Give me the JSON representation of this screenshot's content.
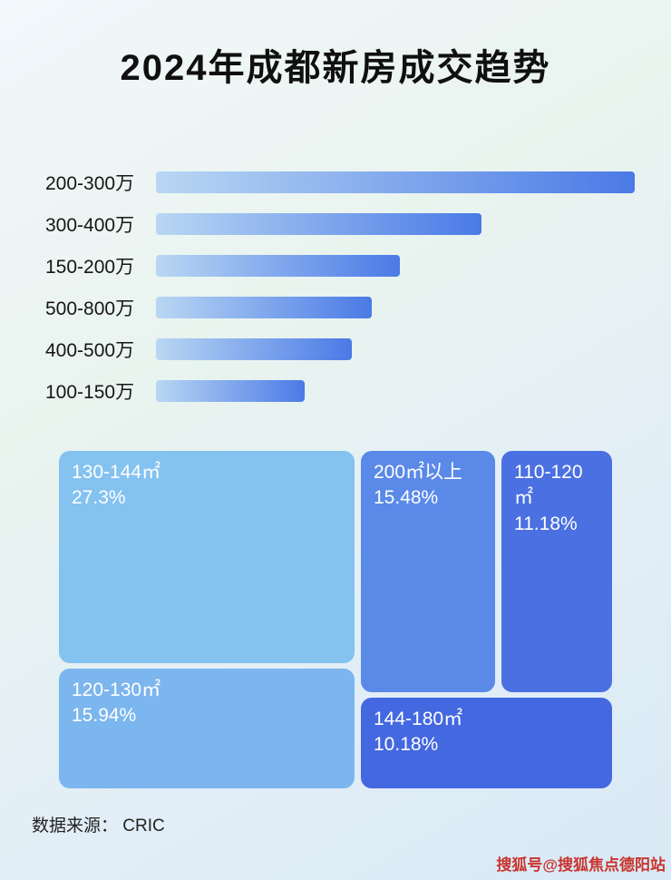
{
  "title": "2024年成都新房成交趋势",
  "colors": {
    "bar_start": "#b9d7f3",
    "bar_end": "#4a7ae6",
    "watermark": "#c8342e"
  },
  "chart_data": [
    {
      "type": "bar",
      "orientation": "horizontal",
      "title": "2024年成都新房成交趋势",
      "categories": [
        "200-300万",
        "300-400万",
        "150-200万",
        "500-800万",
        "400-500万",
        "100-150万"
      ],
      "values": [
        100,
        68,
        51,
        45,
        41,
        31
      ],
      "note": "no numeric axis shown; values are relative bar lengths with longest bar = 100",
      "xlabel": "",
      "ylabel": "",
      "grid": false,
      "legend": false
    },
    {
      "type": "treemap",
      "items": [
        {
          "label": "130-144㎡",
          "value": 27.3,
          "value_label": "27.3%",
          "color": "#84c2f0"
        },
        {
          "label": "200㎡以上",
          "value": 15.48,
          "value_label": "15.48%",
          "color": "#5a89e8"
        },
        {
          "label": "110-120㎡",
          "value": 11.18,
          "value_label": "11.18%",
          "color": "#4a70e2"
        },
        {
          "label": "120-130㎡",
          "value": 15.94,
          "value_label": "15.94%",
          "color": "#7cb6ee"
        },
        {
          "label": "144-180㎡",
          "value": 10.18,
          "value_label": "10.18%",
          "color": "#4468e0"
        }
      ]
    }
  ],
  "footer": {
    "source": "数据来源： CRIC"
  },
  "watermark": {
    "text": "搜狐号@搜狐焦点德阳站"
  }
}
